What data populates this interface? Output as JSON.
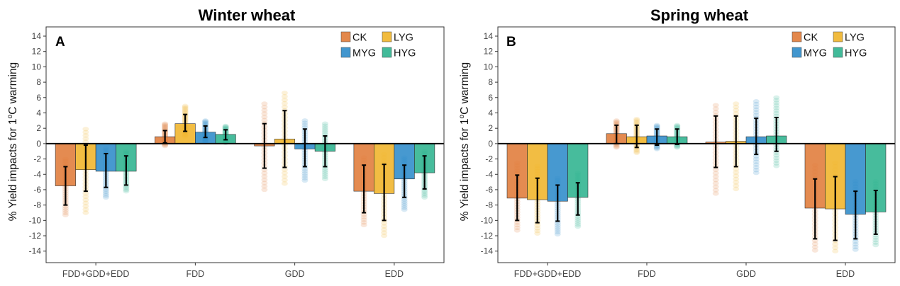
{
  "figure": {
    "ylabel_pre": "% Yield impacts for 1",
    "ylabel_sup": "o",
    "ylabel_post": "C warming"
  },
  "colors": {
    "CK": "#E07B39",
    "LYG": "#F0B429",
    "MYG": "#2E8BC9",
    "HYG": "#2EB38E"
  },
  "chart_data": [
    {
      "type": "bar",
      "title": "Winter wheat",
      "panel_label": "A",
      "xlabel": "",
      "ylabel": "% Yield impacts for 1oC warming",
      "ylim": [
        -15.5,
        15.2
      ],
      "yticks": [
        14,
        12,
        10,
        8,
        6,
        4,
        2,
        0,
        -2,
        -4,
        -6,
        -8,
        -10,
        -12,
        -14
      ],
      "categories": [
        "FDD+GDD+EDD",
        "FDD",
        "GDD",
        "EDD"
      ],
      "legend": {
        "position": "top-right",
        "entries": [
          "CK",
          "LYG",
          "MYG",
          "HYG"
        ]
      },
      "series": [
        {
          "name": "CK",
          "values": [
            -5.5,
            0.9,
            -0.3,
            -6.2
          ],
          "err_low": [
            -8.0,
            0.1,
            -3.2,
            -9.0
          ],
          "err_high": [
            -3.0,
            1.7,
            2.6,
            -2.8
          ],
          "spread_low": [
            -9.3,
            -0.3,
            -6.0,
            -10.6
          ],
          "spread_high": [
            -2.0,
            2.6,
            5.2,
            -1.8
          ]
        },
        {
          "name": "LYG",
          "values": [
            -3.4,
            2.6,
            0.6,
            -6.5
          ],
          "err_low": [
            -6.2,
            1.6,
            -3.1,
            -10.0
          ],
          "err_high": [
            -0.2,
            3.8,
            4.3,
            -2.7
          ],
          "spread_low": [
            -9.0,
            0.9,
            -5.2,
            -12.0
          ],
          "spread_high": [
            1.9,
            4.9,
            6.6,
            -1.4
          ]
        },
        {
          "name": "MYG",
          "values": [
            -3.6,
            1.5,
            -0.7,
            -4.6
          ],
          "err_low": [
            -5.7,
            0.8,
            -3.0,
            -7.0
          ],
          "err_high": [
            -1.3,
            2.3,
            1.9,
            -2.8
          ],
          "spread_low": [
            -7.0,
            0.2,
            -4.8,
            -8.6
          ],
          "spread_high": [
            -0.6,
            3.0,
            3.0,
            -1.8
          ]
        },
        {
          "name": "HYG",
          "values": [
            -3.6,
            1.2,
            -1.0,
            -3.8
          ],
          "err_low": [
            -5.4,
            0.5,
            -3.0,
            -5.9
          ],
          "err_high": [
            -1.6,
            1.8,
            1.0,
            -1.6
          ],
          "spread_low": [
            -6.2,
            0.1,
            -4.6,
            -7.0
          ],
          "spread_high": [
            -1.0,
            2.3,
            2.6,
            -1.0
          ]
        }
      ]
    },
    {
      "type": "bar",
      "title": "Spring wheat",
      "panel_label": "B",
      "xlabel": "",
      "ylabel": "% Yield impacts for 1oC warming",
      "ylim": [
        -15.5,
        15.2
      ],
      "yticks": [
        14,
        12,
        10,
        8,
        6,
        4,
        2,
        0,
        -2,
        -4,
        -6,
        -8,
        -10,
        -12,
        -14
      ],
      "categories": [
        "FDD+GDD+EDD",
        "FDD",
        "GDD",
        "EDD"
      ],
      "legend": {
        "position": "top-right",
        "entries": [
          "CK",
          "LYG",
          "MYG",
          "HYG"
        ]
      },
      "series": [
        {
          "name": "CK",
          "values": [
            -7.1,
            1.3,
            0.2,
            -8.4
          ],
          "err_low": [
            -10.0,
            0.0,
            -3.1,
            -12.4
          ],
          "err_high": [
            -4.1,
            2.4,
            3.6,
            -4.6
          ],
          "spread_low": [
            -11.3,
            -0.5,
            -6.5,
            -13.9
          ],
          "spread_high": [
            -2.5,
            3.0,
            5.0,
            -2.8
          ]
        },
        {
          "name": "LYG",
          "values": [
            -7.3,
            0.9,
            0.3,
            -8.5
          ],
          "err_low": [
            -10.3,
            -0.5,
            -3.0,
            -12.6
          ],
          "err_high": [
            -4.5,
            2.4,
            3.6,
            -4.3
          ],
          "spread_low": [
            -11.7,
            -1.2,
            -5.9,
            -14.0
          ],
          "spread_high": [
            -2.9,
            3.2,
            5.2,
            -2.5
          ]
        },
        {
          "name": "MYG",
          "values": [
            -7.5,
            1.0,
            0.9,
            -9.2
          ],
          "err_low": [
            -10.1,
            -0.2,
            -1.4,
            -12.4
          ],
          "err_high": [
            -5.4,
            1.9,
            3.3,
            -6.2
          ],
          "spread_low": [
            -11.8,
            -0.7,
            -3.8,
            -13.8
          ],
          "spread_high": [
            -4.5,
            2.4,
            5.5,
            -4.9
          ]
        },
        {
          "name": "HYG",
          "values": [
            -7.0,
            0.9,
            1.0,
            -8.9
          ],
          "err_low": [
            -9.3,
            -0.1,
            -1.0,
            -11.8
          ],
          "err_high": [
            -5.1,
            1.9,
            3.4,
            -6.1
          ],
          "spread_low": [
            -10.8,
            -0.5,
            -2.9,
            -13.2
          ],
          "spread_high": [
            -3.8,
            2.4,
            6.0,
            -4.9
          ]
        }
      ]
    }
  ]
}
